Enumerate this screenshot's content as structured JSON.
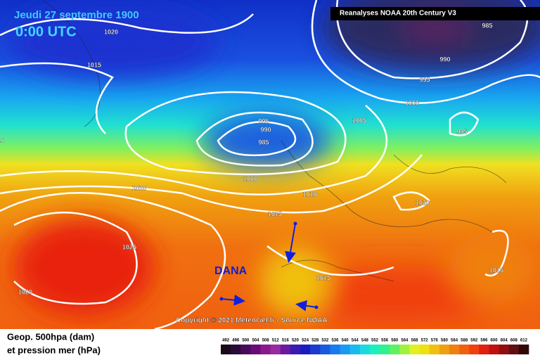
{
  "header": {
    "date": "Jeudi 27 septembre 1900",
    "time": "0:00 UTC",
    "source": "Reanalyses NOAA 20th Century V3"
  },
  "annotation": "DANA",
  "copyright": "Copyright © 2021 Meteociel.fr - Source NOAA",
  "legend": {
    "line1": "Geop. 500hpa (dam)",
    "line2": "et pression mer (hPa)",
    "labels": [
      492,
      496,
      500,
      504,
      508,
      512,
      516,
      520,
      524,
      528,
      532,
      536,
      540,
      544,
      548,
      552,
      556,
      560,
      564,
      568,
      572,
      576,
      580,
      584,
      588,
      592,
      596,
      600,
      604,
      608,
      612
    ],
    "colors": [
      "#1a0a1a",
      "#2a0a3a",
      "#4a0a5a",
      "#6a0a7a",
      "#8a1a8a",
      "#9a2aa0",
      "#6a1aa0",
      "#3a1ab0",
      "#1a1ac0",
      "#1a3ad0",
      "#1a5ae0",
      "#1a7af0",
      "#1a9af0",
      "#1abaf0",
      "#1adae0",
      "#1af0c0",
      "#30f090",
      "#60f060",
      "#a0f040",
      "#e0f020",
      "#f0e010",
      "#f0c010",
      "#f0a010",
      "#f08010",
      "#f06010",
      "#f04010",
      "#e02010",
      "#c01010",
      "#901010",
      "#601010",
      "#300808"
    ]
  },
  "isobars": [
    1020,
    1015,
    1010,
    995,
    990,
    985,
    1000,
    1005,
    1010,
    1015,
    1020,
    1025,
    1020,
    1015,
    1020,
    985,
    990,
    995,
    1000,
    995,
    1015
  ]
}
